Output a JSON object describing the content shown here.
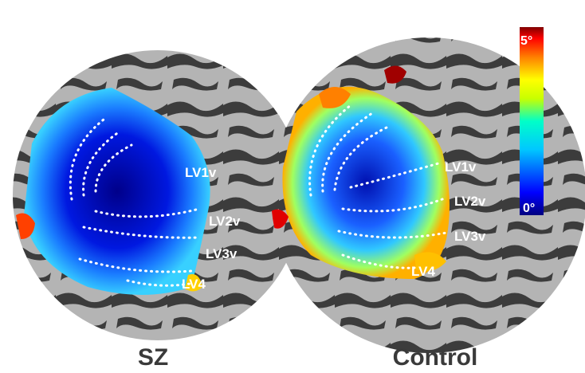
{
  "panels": [
    {
      "caption": "SZ",
      "region_labels": [
        "LV1v",
        "LV2v",
        "LV3v",
        "LV4"
      ]
    },
    {
      "caption": "Control",
      "region_labels": [
        "LV1v",
        "LV2v",
        "LV3v",
        "LV4"
      ]
    }
  ],
  "colorbar": {
    "max_label": "5°",
    "min_label": "0°",
    "colors": [
      "#000080",
      "#0000ff",
      "#00c8ff",
      "#00ffc8",
      "#c8ff00",
      "#ffff00",
      "#ff8000",
      "#ff0000",
      "#800000"
    ]
  },
  "colors": {
    "sulcus": "#3c3c3c",
    "gyrus": "#b4b4b4",
    "boundary_dots": "#ffffff"
  }
}
